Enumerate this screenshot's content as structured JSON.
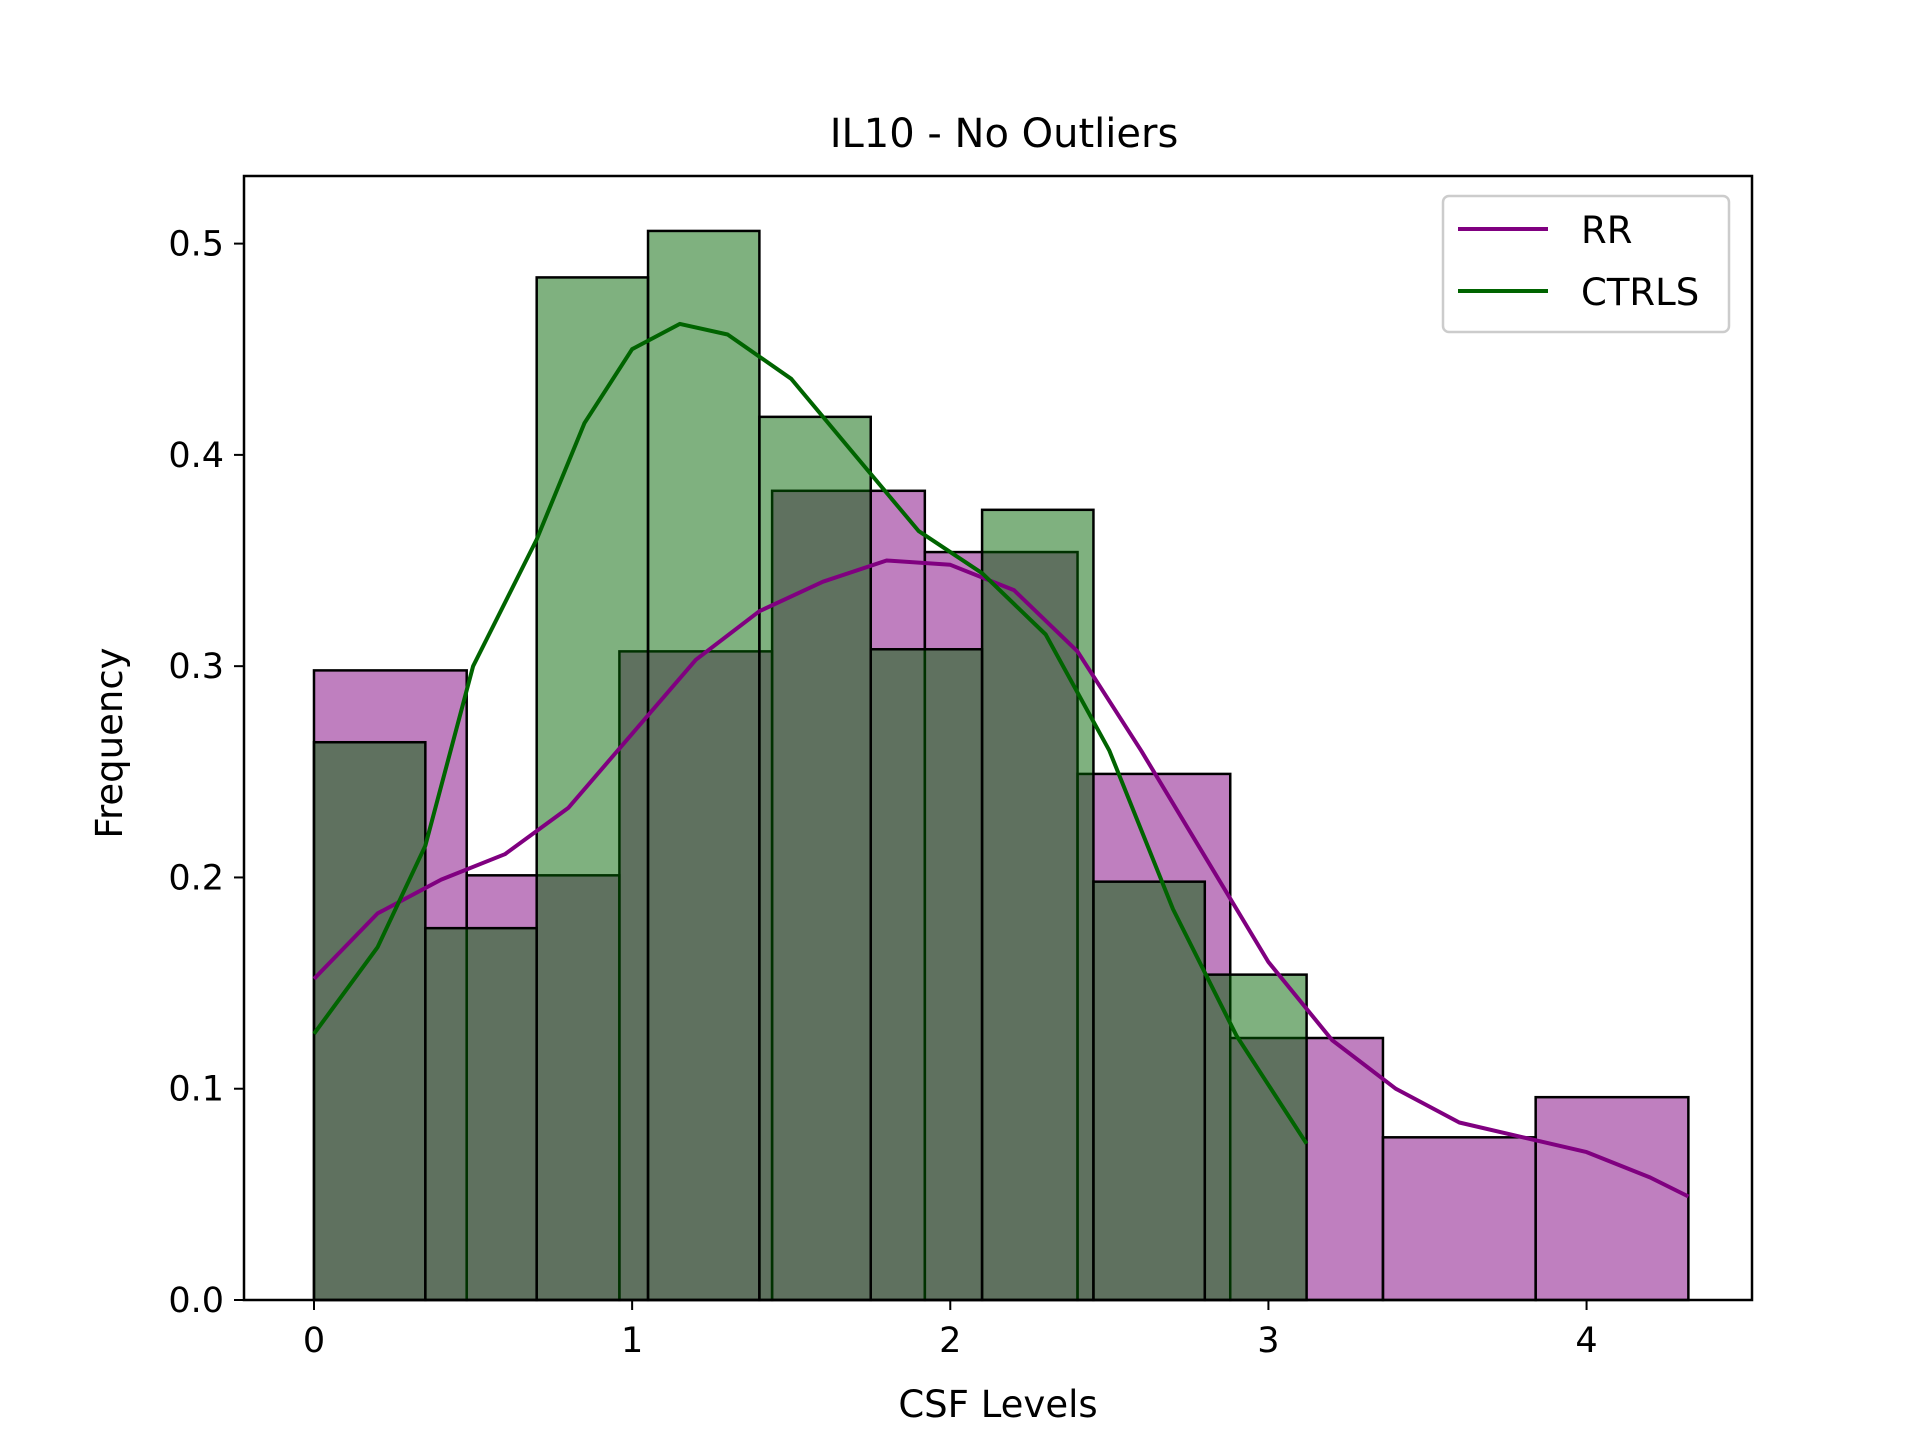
{
  "chart_data": {
    "type": "bar",
    "title": "IL10 - No Outliers",
    "xlabel": "CSF Levels",
    "ylabel": "Frequency",
    "xlim": [
      -0.22,
      4.52
    ],
    "ylim": [
      0,
      0.532
    ],
    "xticks": [
      0,
      1,
      2,
      3,
      4
    ],
    "yticks": [
      "0.0",
      "0.1",
      "0.2",
      "0.3",
      "0.4",
      "0.5"
    ],
    "legend_position": "top-right",
    "series": [
      {
        "name": "RR",
        "color": "#800080",
        "fill": "#c080c0",
        "bins": [
          {
            "x0": 0.0,
            "x1": 0.48,
            "value": 0.298
          },
          {
            "x0": 0.48,
            "x1": 0.96,
            "value": 0.201
          },
          {
            "x0": 0.96,
            "x1": 1.44,
            "value": 0.307
          },
          {
            "x0": 1.44,
            "x1": 1.92,
            "value": 0.383
          },
          {
            "x0": 1.92,
            "x1": 2.4,
            "value": 0.354
          },
          {
            "x0": 2.4,
            "x1": 2.88,
            "value": 0.249
          },
          {
            "x0": 2.88,
            "x1": 3.36,
            "value": 0.124
          },
          {
            "x0": 3.36,
            "x1": 3.84,
            "value": 0.077
          },
          {
            "x0": 3.84,
            "x1": 4.32,
            "value": 0.096
          }
        ],
        "kde": [
          [
            0.0,
            0.152
          ],
          [
            0.2,
            0.183
          ],
          [
            0.4,
            0.199
          ],
          [
            0.6,
            0.211
          ],
          [
            0.8,
            0.233
          ],
          [
            1.0,
            0.268
          ],
          [
            1.2,
            0.303
          ],
          [
            1.4,
            0.326
          ],
          [
            1.6,
            0.34
          ],
          [
            1.8,
            0.35
          ],
          [
            2.0,
            0.348
          ],
          [
            2.2,
            0.336
          ],
          [
            2.4,
            0.307
          ],
          [
            2.6,
            0.26
          ],
          [
            2.8,
            0.21
          ],
          [
            3.0,
            0.16
          ],
          [
            3.2,
            0.123
          ],
          [
            3.4,
            0.1
          ],
          [
            3.6,
            0.084
          ],
          [
            3.8,
            0.077
          ],
          [
            4.0,
            0.07
          ],
          [
            4.2,
            0.058
          ],
          [
            4.32,
            0.049
          ]
        ]
      },
      {
        "name": "CTRLS",
        "color": "#006400",
        "fill": "#80b280",
        "bins": [
          {
            "x0": 0.0,
            "x1": 0.35,
            "value": 0.264
          },
          {
            "x0": 0.35,
            "x1": 0.7,
            "value": 0.176
          },
          {
            "x0": 0.7,
            "x1": 1.05,
            "value": 0.484
          },
          {
            "x0": 1.05,
            "x1": 1.4,
            "value": 0.506
          },
          {
            "x0": 1.4,
            "x1": 1.75,
            "value": 0.418
          },
          {
            "x0": 1.75,
            "x1": 2.1,
            "value": 0.308
          },
          {
            "x0": 2.1,
            "x1": 2.45,
            "value": 0.374
          },
          {
            "x0": 2.45,
            "x1": 2.8,
            "value": 0.198
          },
          {
            "x0": 2.8,
            "x1": 3.12,
            "value": 0.154
          }
        ],
        "kde": [
          [
            0.0,
            0.126
          ],
          [
            0.2,
            0.167
          ],
          [
            0.35,
            0.215
          ],
          [
            0.5,
            0.3
          ],
          [
            0.7,
            0.36
          ],
          [
            0.85,
            0.415
          ],
          [
            1.0,
            0.45
          ],
          [
            1.15,
            0.462
          ],
          [
            1.3,
            0.457
          ],
          [
            1.5,
            0.436
          ],
          [
            1.7,
            0.4
          ],
          [
            1.9,
            0.364
          ],
          [
            2.1,
            0.344
          ],
          [
            2.3,
            0.315
          ],
          [
            2.5,
            0.26
          ],
          [
            2.7,
            0.185
          ],
          [
            2.9,
            0.125
          ],
          [
            3.12,
            0.074
          ]
        ]
      }
    ]
  }
}
